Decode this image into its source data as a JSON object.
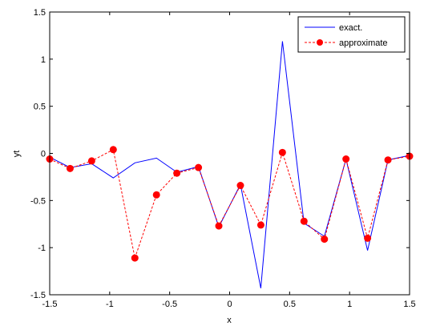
{
  "chart_data": {
    "type": "line",
    "xlabel": "x",
    "ylabel": "yt",
    "xlim": [
      -1.5,
      1.5
    ],
    "ylim": [
      -1.5,
      1.5
    ],
    "xticks": [
      -1.5,
      -1,
      -0.5,
      0,
      0.5,
      1,
      1.5
    ],
    "xtick_labels": [
      "-1.5",
      "-1",
      "-0.5",
      "0",
      "0.5",
      "1",
      "1.5"
    ],
    "yticks": [
      -1.5,
      -1,
      -0.5,
      0,
      0.5,
      1,
      1.5
    ],
    "ytick_labels": [
      "-1.5",
      "-1",
      "-0.5",
      "0",
      "0.5",
      "1",
      "1.5"
    ],
    "grid": false,
    "legend_position": "top-right",
    "series": [
      {
        "name": "exact.",
        "color": "#0000ff",
        "style": "solid",
        "x": [
          -1.5,
          -1.33,
          -1.15,
          -0.97,
          -0.79,
          -0.61,
          -0.44,
          -0.26,
          -0.09,
          0.09,
          0.26,
          0.44,
          0.62,
          0.79,
          0.97,
          1.15,
          1.32,
          1.5
        ],
        "y": [
          -0.04,
          -0.15,
          -0.11,
          -0.26,
          -0.1,
          -0.05,
          -0.2,
          -0.14,
          -0.78,
          -0.33,
          -1.43,
          1.19,
          -0.74,
          -0.88,
          -0.06,
          -1.03,
          -0.07,
          -0.02
        ]
      },
      {
        "name": "approximate",
        "color": "#ff0000",
        "style": "dashed",
        "marker": "circle",
        "x": [
          -1.5,
          -1.33,
          -1.15,
          -0.97,
          -0.79,
          -0.61,
          -0.44,
          -0.26,
          -0.09,
          0.09,
          0.26,
          0.44,
          0.62,
          0.79,
          0.97,
          1.15,
          1.32,
          1.5
        ],
        "y": [
          -0.06,
          -0.16,
          -0.08,
          0.04,
          -1.11,
          -0.44,
          -0.21,
          -0.15,
          -0.77,
          -0.34,
          -0.76,
          0.01,
          -0.72,
          -0.91,
          -0.06,
          -0.9,
          -0.07,
          -0.03
        ]
      }
    ]
  }
}
